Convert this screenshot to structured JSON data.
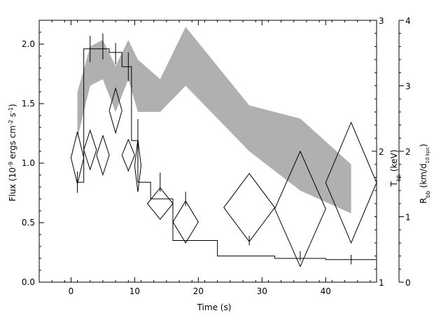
{
  "chart_data": {
    "type": "scatter",
    "title": "",
    "xlabel": "Time (s)",
    "ylabel": "Flux (10",
    "ylabel_sup1": "-9",
    "ylabel_mid": " ergs cm",
    "ylabel_sup2": "-2",
    "ylabel_s": " s",
    "ylabel_sup3": "-1",
    "ylabel_end": ")",
    "xlim": [
      -5,
      48
    ],
    "ylim": [
      0,
      2.2
    ],
    "x_ticks": [
      0,
      10,
      20,
      30,
      40
    ],
    "y_ticks": [
      0.0,
      0.5,
      1.0,
      1.5,
      2.0
    ],
    "y_tick_labels": [
      "0.0",
      "0.5",
      "1.0",
      "1.5",
      "2.0"
    ],
    "right_axis_T": {
      "label": "T",
      "label_sub": "bb",
      "label_end": " (keV)",
      "ylim": [
        1,
        3
      ],
      "ticks": [
        1,
        2,
        3
      ]
    },
    "right_axis_R": {
      "label": "R",
      "label_sub": "bb",
      "label_mid": " (km/d",
      "label_sub2": "10 kpc",
      "label_end": ")",
      "ylim": [
        0,
        4
      ],
      "ticks": [
        0,
        1,
        2,
        3,
        4
      ]
    },
    "series": [
      {
        "kind": "step",
        "x_edges": [
          1,
          2,
          6,
          8,
          9.5,
          10.5,
          12.5,
          16,
          23,
          32,
          40,
          48
        ],
        "values": [
          0.84,
          1.96,
          1.93,
          1.81,
          1.19,
          0.84,
          0.7,
          0.35,
          0.22,
          0.2,
          0.19
        ],
        "errors": [
          {
            "x": 1,
            "y": 0.84,
            "err": 0.09
          },
          {
            "x": 3,
            "y": 1.96,
            "err": 0.11
          },
          {
            "x": 5,
            "y": 1.98,
            "err": 0.11
          },
          {
            "x": 7,
            "y": 1.92,
            "err": 0.09
          },
          {
            "x": 9,
            "y": 1.81,
            "err": 0.12
          },
          {
            "x": 10.5,
            "y": 1.19,
            "err": 0.18
          },
          {
            "x": 14,
            "y": 0.84,
            "err": 0.08
          },
          {
            "x": 18,
            "y": 0.7,
            "err": 0.06
          },
          {
            "x": 28,
            "y": 0.35,
            "err": 0.04
          },
          {
            "x": 36,
            "y": 0.22,
            "err": 0.04
          },
          {
            "x": 44,
            "y": 0.19,
            "err": 0.04
          }
        ]
      },
      {
        "kind": "diamonds",
        "axis": "T",
        "points": [
          {
            "x": 1,
            "y": 1.95,
            "dx": 1,
            "dy": 0.2
          },
          {
            "x": 3,
            "y": 2.01,
            "dx": 1,
            "dy": 0.15
          },
          {
            "x": 5,
            "y": 1.97,
            "dx": 1,
            "dy": 0.15
          },
          {
            "x": 7,
            "y": 2.31,
            "dx": 1,
            "dy": 0.17
          },
          {
            "x": 9,
            "y": 1.97,
            "dx": 1,
            "dy": 0.12
          },
          {
            "x": 10.5,
            "y": 1.89,
            "dx": 0.5,
            "dy": 0.2
          },
          {
            "x": 14,
            "y": 1.6,
            "dx": 2,
            "dy": 0.12
          },
          {
            "x": 18,
            "y": 1.46,
            "dx": 2,
            "dy": 0.16
          },
          {
            "x": 28,
            "y": 1.57,
            "dx": 4,
            "dy": 0.26
          },
          {
            "x": 36,
            "y": 1.56,
            "dx": 4,
            "dy": 0.44
          },
          {
            "x": 44,
            "y": 1.76,
            "dx": 4,
            "dy": 0.46
          }
        ]
      },
      {
        "kind": "band",
        "axis": "R",
        "x": [
          1,
          3,
          5,
          7,
          9,
          10.5,
          14,
          18,
          28,
          36,
          44
        ],
        "lower": [
          2.2,
          3.0,
          3.1,
          2.6,
          3.1,
          2.6,
          2.6,
          3.0,
          2.0,
          1.4,
          1.05
        ],
        "upper": [
          2.9,
          3.6,
          3.7,
          3.3,
          3.7,
          3.4,
          3.1,
          3.9,
          2.7,
          2.5,
          1.8
        ]
      }
    ],
    "grid": false,
    "legend": "none"
  }
}
